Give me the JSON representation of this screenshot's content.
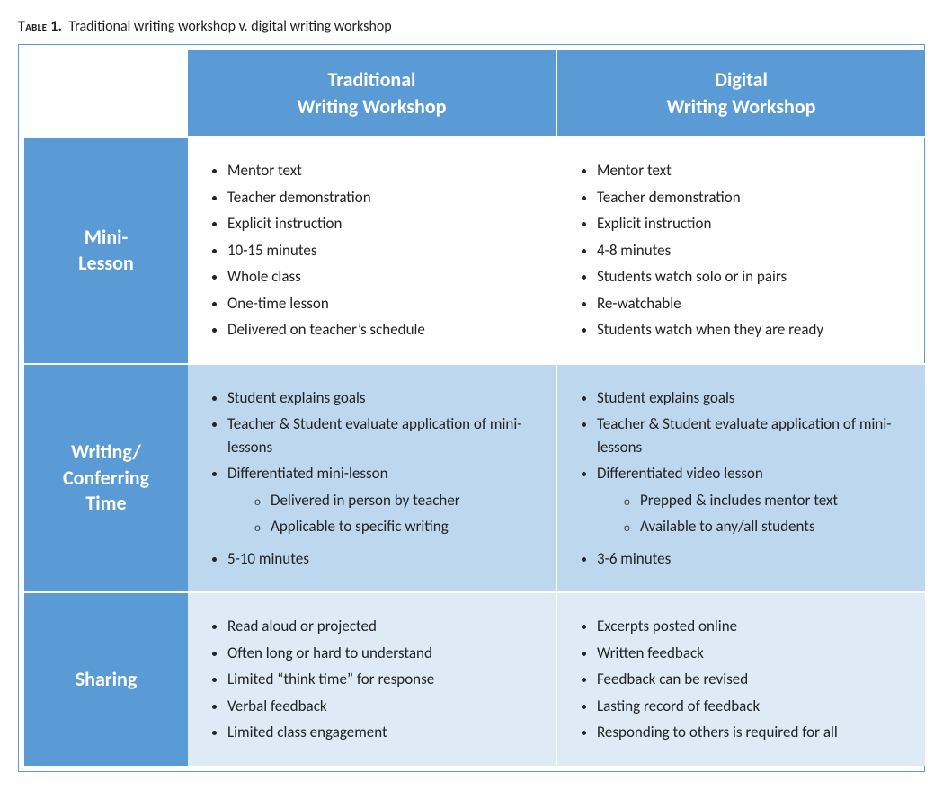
{
  "caption": {
    "label": "Table 1.",
    "text": "Traditional writing workshop v. digital writing workshop"
  },
  "palette": {
    "header_bg": "#5b9bd5",
    "header_fg": "#ffffff",
    "row_odd_bg": "#bdd7ee",
    "row_even_bg": "#deebf7",
    "frame_border": "#5b9bd5",
    "cell_gap": "#ffffff"
  },
  "typography": {
    "caption_fontsize": 16,
    "header_fontsize": 22,
    "body_fontsize": 17,
    "font_family": "Calibri"
  },
  "columns": [
    {
      "line1": "Traditional",
      "line2": "Writing Workshop"
    },
    {
      "line1": "Digital",
      "line2": "Writing Workshop"
    }
  ],
  "rows": [
    {
      "line1": "Mini-",
      "line2": "Lesson",
      "traditional": [
        {
          "t": "Mentor text"
        },
        {
          "t": "Teacher demonstration"
        },
        {
          "t": "Explicit instruction"
        },
        {
          "t": "10-15 minutes"
        },
        {
          "t": "Whole class"
        },
        {
          "t": "One-time lesson"
        },
        {
          "t": "Delivered on teacher’s schedule"
        }
      ],
      "digital": [
        {
          "t": "Mentor text"
        },
        {
          "t": "Teacher demonstration"
        },
        {
          "t": "Explicit instruction"
        },
        {
          "t": "4-8 minutes"
        },
        {
          "t": "Students watch solo or in pairs"
        },
        {
          "t": "Re-watchable"
        },
        {
          "t": "Students watch when they are ready"
        }
      ]
    },
    {
      "line1": "Writing/",
      "line2": "Conferring",
      "line3": "Time",
      "traditional": [
        {
          "t": "Student explains goals"
        },
        {
          "t": "Teacher & Student evaluate application of mini-lessons"
        },
        {
          "t": "Differentiated mini-lesson",
          "sub": [
            {
              "t": "Delivered in person by teacher"
            },
            {
              "t": "Applicable to specific writing"
            }
          ]
        },
        {
          "t": "5-10 minutes"
        }
      ],
      "digital": [
        {
          "t": "Student explains goals"
        },
        {
          "t": "Teacher & Student evaluate application of mini-lessons"
        },
        {
          "t": "Differentiated video lesson",
          "sub": [
            {
              "t": "Prepped & includes mentor text"
            },
            {
              "t": "Available to any/all students"
            }
          ]
        },
        {
          "t": "3-6 minutes"
        }
      ]
    },
    {
      "line1": "Sharing",
      "traditional": [
        {
          "t": "Read aloud or projected"
        },
        {
          "t": "Often long or hard to understand"
        },
        {
          "t": "Limited “think time” for response"
        },
        {
          "t": "Verbal feedback"
        },
        {
          "t": "Limited class engagement"
        }
      ],
      "digital": [
        {
          "t": "Excerpts posted online"
        },
        {
          "t": "Written feedback"
        },
        {
          "t": "Feedback can be revised"
        },
        {
          "t": "Lasting record of feedback"
        },
        {
          "t": "Responding to others is required for all"
        }
      ]
    }
  ]
}
